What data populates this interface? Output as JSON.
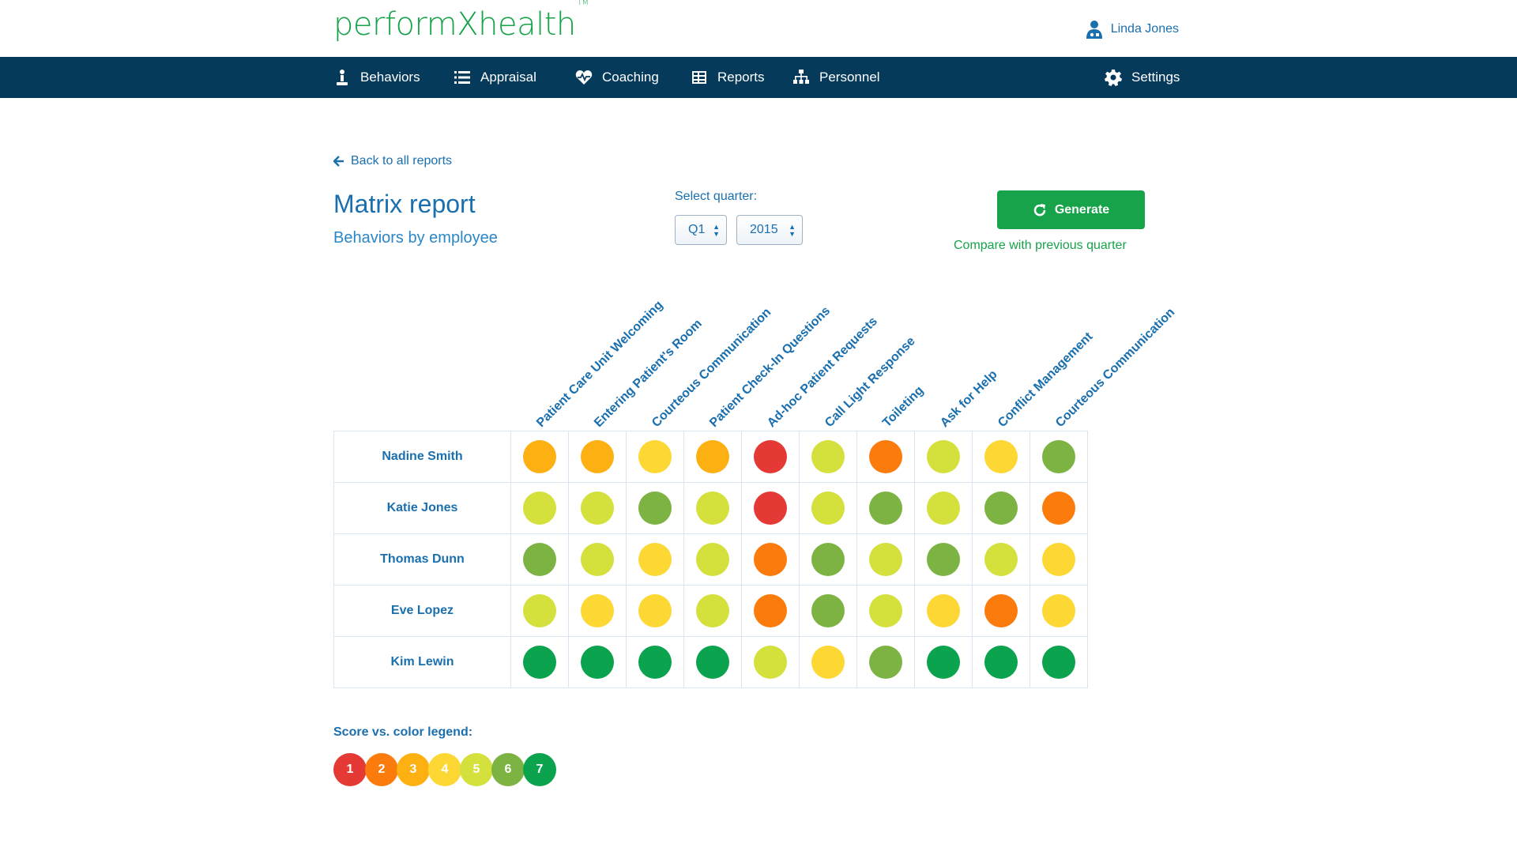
{
  "app": {
    "logo_main": "performX",
    "logo_rest": "health",
    "logo_tm": "TM",
    "user_name": "Linda Jones"
  },
  "nav": {
    "behaviors": "Behaviors",
    "appraisal": "Appraisal",
    "coaching": "Coaching",
    "reports": "Reports",
    "personnel": "Personnel",
    "settings": "Settings"
  },
  "page": {
    "back_link": "Back to all reports",
    "title": "Matrix report",
    "subtitle": "Behaviors by employee",
    "quarter_label": "Select quarter:",
    "quarter_value": "Q1",
    "year_value": "2015",
    "generate_label": "Generate",
    "compare_link": "Compare with previous quarter"
  },
  "matrix": {
    "columns": [
      "Patient Care Unit Welcoming",
      "Entering Patient's Room",
      "Courteous Communication",
      "Patient Check-In Questions",
      "Ad-hoc Patient Requests",
      "Call Light Response",
      "Toileting",
      "Ask for Help",
      "Conflict Management",
      "Courteous Communication"
    ],
    "rows": [
      {
        "name": "Nadine Smith",
        "scores": [
          3,
          3,
          4,
          3,
          1,
          5,
          2,
          5,
          4,
          6
        ]
      },
      {
        "name": "Katie Jones",
        "scores": [
          5,
          5,
          6,
          5,
          1,
          5,
          6,
          5,
          6,
          2
        ]
      },
      {
        "name": "Thomas Dunn",
        "scores": [
          6,
          5,
          4,
          5,
          2,
          6,
          5,
          6,
          5,
          4
        ]
      },
      {
        "name": "Eve Lopez",
        "scores": [
          5,
          4,
          4,
          5,
          2,
          6,
          5,
          4,
          2,
          4
        ]
      },
      {
        "name": "Kim Lewin",
        "scores": [
          7,
          7,
          7,
          7,
          5,
          4,
          6,
          7,
          7,
          7
        ]
      }
    ]
  },
  "legend": {
    "title": "Score vs. color legend:",
    "items": [
      {
        "score": "1",
        "color": "#e53935"
      },
      {
        "score": "2",
        "color": "#fb7c0c"
      },
      {
        "score": "3",
        "color": "#fdb012"
      },
      {
        "score": "4",
        "color": "#fdd835"
      },
      {
        "score": "5",
        "color": "#d4e03b"
      },
      {
        "score": "6",
        "color": "#7cb342"
      },
      {
        "score": "7",
        "color": "#0ba34e"
      }
    ]
  }
}
